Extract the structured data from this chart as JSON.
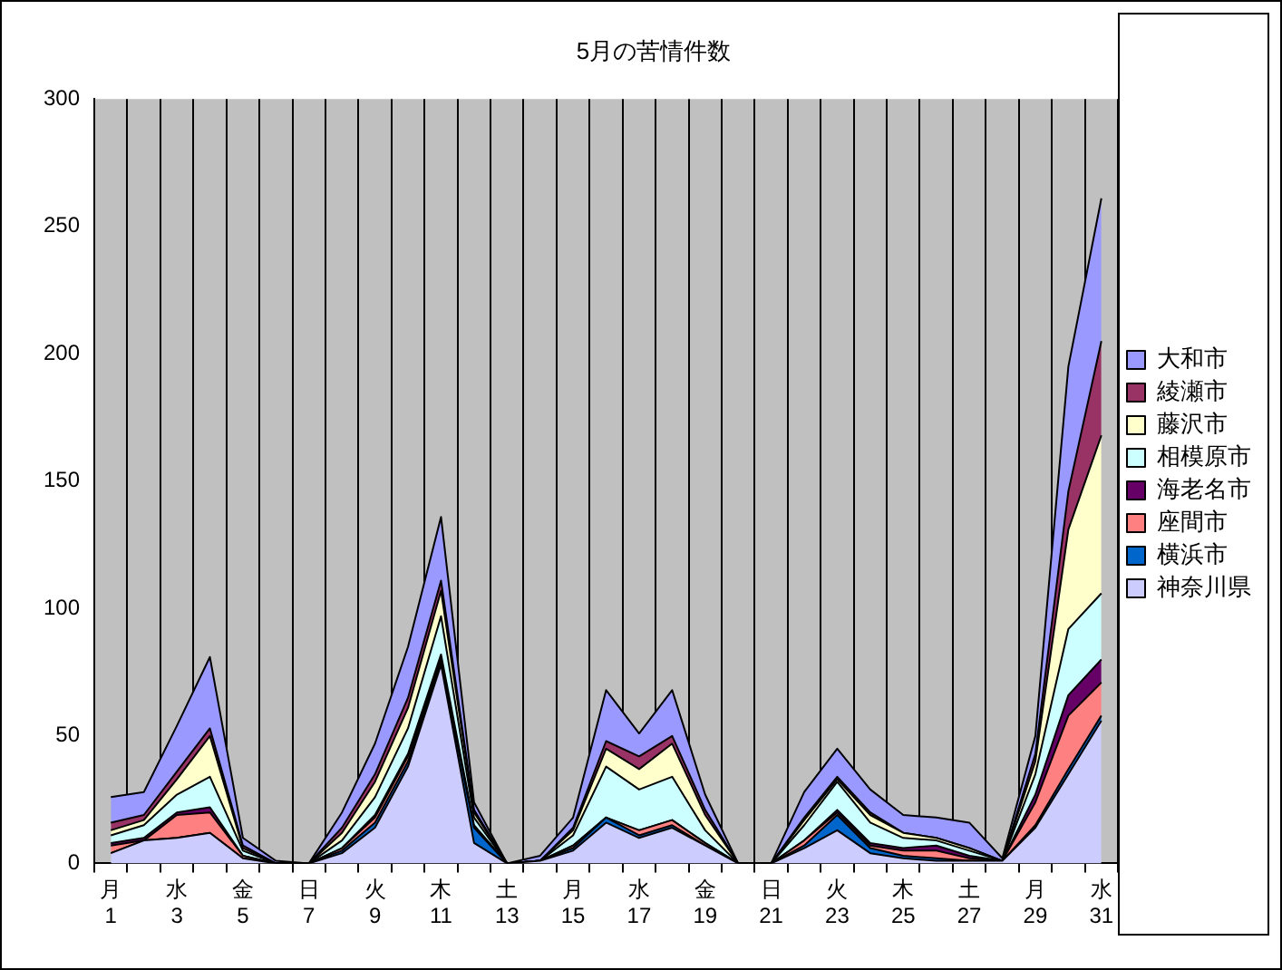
{
  "chart_data": {
    "type": "area",
    "title": "5月の苦情件数",
    "stacked": true,
    "grid": "x",
    "legend": "right",
    "categories": [
      "月\n1",
      null,
      "水\n3",
      null,
      "金\n5",
      null,
      "日\n7",
      null,
      "火\n9",
      null,
      "木\n11",
      null,
      "土\n13",
      null,
      "月\n15",
      null,
      "水\n17",
      null,
      "金\n19",
      null,
      "日\n21",
      null,
      "火\n23",
      null,
      "木\n25",
      null,
      "土\n27",
      null,
      "月\n29",
      null,
      "水\n31"
    ],
    "ylim": [
      0,
      300
    ],
    "yticks": [
      0,
      50,
      100,
      150,
      200,
      250,
      300
    ],
    "series": [
      {
        "name": "神奈川県",
        "color": "#ccccff",
        "values": [
          4,
          9,
          10,
          12,
          2,
          0,
          0,
          4,
          14,
          38,
          78,
          8,
          0,
          1,
          5,
          16,
          10,
          14,
          7,
          0,
          0,
          6,
          13,
          4,
          2,
          1,
          1,
          1,
          14,
          35,
          56
        ]
      },
      {
        "name": "横浜市",
        "color": "#0066cc",
        "values": [
          0,
          0,
          0,
          0,
          0,
          0,
          0,
          1,
          2,
          2,
          1,
          6,
          0,
          0,
          1,
          2,
          1,
          1,
          0,
          0,
          0,
          1,
          6,
          2,
          1,
          1,
          0,
          0,
          1,
          2,
          2
        ]
      },
      {
        "name": "座間市",
        "color": "#ff8080",
        "values": [
          3,
          0,
          9,
          8,
          1,
          0,
          0,
          1,
          2,
          2,
          1,
          0,
          0,
          0,
          1,
          0,
          2,
          2,
          1,
          0,
          0,
          2,
          1,
          1,
          2,
          3,
          1,
          0,
          9,
          21,
          13
        ]
      },
      {
        "name": "海老名市",
        "color": "#660066",
        "values": [
          1,
          1,
          1,
          2,
          0,
          0,
          0,
          0,
          1,
          1,
          2,
          1,
          0,
          0,
          0,
          0,
          0,
          0,
          0,
          0,
          0,
          0,
          1,
          1,
          1,
          2,
          1,
          0,
          3,
          8,
          9
        ]
      },
      {
        "name": "相模原市",
        "color": "#ccffff",
        "values": [
          3,
          5,
          7,
          12,
          2,
          0,
          0,
          3,
          7,
          10,
          15,
          3,
          0,
          0,
          4,
          20,
          16,
          17,
          5,
          0,
          0,
          6,
          11,
          8,
          4,
          2,
          2,
          0,
          8,
          26,
          26
        ]
      },
      {
        "name": "藤沢市",
        "color": "#ffffcc",
        "values": [
          2,
          2,
          6,
          16,
          1,
          0,
          0,
          3,
          6,
          8,
          10,
          2,
          0,
          0,
          2,
          7,
          8,
          13,
          6,
          0,
          0,
          2,
          1,
          3,
          2,
          1,
          1,
          0,
          5,
          39,
          62
        ]
      },
      {
        "name": "綾瀬市",
        "color": "#993366",
        "values": [
          3,
          2,
          3,
          3,
          1,
          0,
          0,
          2,
          3,
          4,
          4,
          1,
          0,
          0,
          1,
          3,
          5,
          3,
          2,
          0,
          0,
          1,
          1,
          1,
          0,
          0,
          0,
          0,
          3,
          15,
          37
        ]
      },
      {
        "name": "大和市",
        "color": "#9999ff",
        "values": [
          10,
          9,
          18,
          28,
          3,
          1,
          0,
          6,
          12,
          20,
          25,
          3,
          0,
          2,
          4,
          20,
          9,
          18,
          6,
          0,
          0,
          10,
          11,
          9,
          7,
          8,
          10,
          1,
          7,
          49,
          56
        ]
      }
    ]
  }
}
